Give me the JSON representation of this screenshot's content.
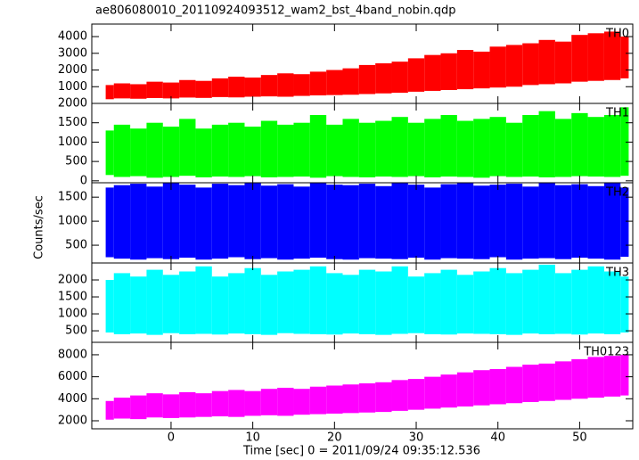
{
  "chart_data": [
    {
      "type": "band",
      "title": "ae806080010_20110924093512_wam2_bst_4band_nobin.qdp",
      "x": [
        -8,
        -6,
        -4,
        -2,
        0,
        2,
        4,
        6,
        8,
        10,
        12,
        14,
        16,
        18,
        20,
        22,
        24,
        26,
        28,
        30,
        32,
        34,
        36,
        38,
        40,
        42,
        44,
        46,
        48,
        50,
        52,
        54,
        56
      ],
      "series": [
        {
          "name": "TH0",
          "color": "#ff0000",
          "low": [
            250,
            300,
            280,
            320,
            300,
            350,
            330,
            380,
            360,
            400,
            420,
            400,
            450,
            480,
            500,
            520,
            560,
            600,
            640,
            700,
            750,
            800,
            850,
            900,
            950,
            1000,
            1100,
            1150,
            1200,
            1300,
            1350,
            1400,
            1500
          ],
          "high": [
            1100,
            1200,
            1150,
            1300,
            1250,
            1400,
            1350,
            1500,
            1600,
            1550,
            1700,
            1800,
            1750,
            1900,
            2000,
            2100,
            2300,
            2400,
            2500,
            2700,
            2900,
            3000,
            3200,
            3100,
            3400,
            3500,
            3600,
            3800,
            3700,
            4100,
            4200,
            4300,
            4000
          ]
        }
      ],
      "xlim": [
        -9.7,
        56.5
      ],
      "xticks": [
        0,
        10,
        20,
        30,
        40,
        50
      ],
      "ylim": [
        0,
        4750
      ],
      "yticks": [
        1000,
        2000,
        3000,
        4000
      ]
    },
    {
      "type": "band",
      "x": [
        -8,
        -6,
        -4,
        -2,
        0,
        2,
        4,
        6,
        8,
        10,
        12,
        14,
        16,
        18,
        20,
        22,
        24,
        26,
        28,
        30,
        32,
        34,
        36,
        38,
        40,
        42,
        44,
        46,
        48,
        50,
        52,
        54,
        56
      ],
      "series": [
        {
          "name": "TH1",
          "color": "#00ff00",
          "low": [
            150,
            100,
            120,
            80,
            100,
            130,
            90,
            110,
            100,
            120,
            90,
            100,
            110,
            80,
            120,
            100,
            90,
            110,
            100,
            120,
            90,
            110,
            100,
            80,
            120,
            100,
            110,
            90,
            100,
            120,
            110,
            100,
            130
          ],
          "high": [
            1300,
            1450,
            1350,
            1500,
            1400,
            1600,
            1350,
            1450,
            1500,
            1400,
            1550,
            1450,
            1500,
            1700,
            1450,
            1600,
            1500,
            1550,
            1650,
            1500,
            1600,
            1700,
            1550,
            1600,
            1650,
            1500,
            1700,
            1800,
            1600,
            1750,
            1650,
            1700,
            1900
          ]
        }
      ],
      "xlim": [
        -9.7,
        56.5
      ],
      "xticks": [
        0,
        10,
        20,
        30,
        40,
        50
      ],
      "ylim": [
        -50,
        2000
      ],
      "yticks": [
        0,
        500,
        1000,
        1500,
        2000
      ]
    },
    {
      "type": "band",
      "ylabel": "Counts/sec",
      "x": [
        -8,
        -6,
        -4,
        -2,
        0,
        2,
        4,
        6,
        8,
        10,
        12,
        14,
        16,
        18,
        20,
        22,
        24,
        26,
        28,
        30,
        32,
        34,
        36,
        38,
        40,
        42,
        44,
        46,
        48,
        50,
        52,
        54,
        56
      ],
      "series": [
        {
          "name": "TH2",
          "color": "#0000ff",
          "low": [
            250,
            220,
            200,
            230,
            210,
            240,
            200,
            220,
            250,
            210,
            230,
            200,
            220,
            240,
            210,
            200,
            230,
            220,
            210,
            240,
            200,
            230,
            220,
            210,
            250,
            200,
            220,
            230,
            210,
            240,
            220,
            200,
            260
          ],
          "high": [
            1700,
            1750,
            1780,
            1720,
            1790,
            1760,
            1700,
            1780,
            1750,
            1790,
            1740,
            1770,
            1720,
            1790,
            1760,
            1750,
            1780,
            1730,
            1790,
            1760,
            1700,
            1770,
            1790,
            1740,
            1760,
            1780,
            1720,
            1790,
            1750,
            1770,
            1730,
            1790,
            1700
          ]
        }
      ],
      "xlim": [
        -9.7,
        56.5
      ],
      "xticks": [
        0,
        10,
        20,
        30,
        40,
        50
      ],
      "ylim": [
        130,
        1800
      ],
      "yticks": [
        500,
        1000,
        1500
      ]
    },
    {
      "type": "band",
      "x": [
        -8,
        -6,
        -4,
        -2,
        0,
        2,
        4,
        6,
        8,
        10,
        12,
        14,
        16,
        18,
        20,
        22,
        24,
        26,
        28,
        30,
        32,
        34,
        36,
        38,
        40,
        42,
        44,
        46,
        48,
        50,
        52,
        54,
        56
      ],
      "series": [
        {
          "name": "TH3",
          "color": "#00ffff",
          "low": [
            450,
            400,
            420,
            380,
            430,
            400,
            410,
            390,
            420,
            400,
            380,
            430,
            410,
            400,
            390,
            420,
            400,
            380,
            410,
            430,
            400,
            390,
            420,
            410,
            400,
            380,
            420,
            400,
            410,
            390,
            420,
            400,
            450
          ],
          "high": [
            2000,
            2200,
            2100,
            2300,
            2150,
            2250,
            2400,
            2100,
            2200,
            2350,
            2150,
            2250,
            2300,
            2400,
            2200,
            2150,
            2300,
            2250,
            2400,
            2100,
            2200,
            2300,
            2150,
            2250,
            2350,
            2200,
            2300,
            2450,
            2200,
            2300,
            2400,
            2250,
            2100
          ]
        }
      ],
      "xlim": [
        -9.7,
        56.5
      ],
      "xticks": [
        0,
        10,
        20,
        30,
        40,
        50
      ],
      "ylim": [
        160,
        2500
      ],
      "yticks": [
        500,
        1000,
        1500,
        2000
      ]
    },
    {
      "type": "band",
      "xlabel": "Time [sec] 0 = 2011/09/24 09:35:12.536",
      "x": [
        -8,
        -6,
        -4,
        -2,
        0,
        2,
        4,
        6,
        8,
        10,
        12,
        14,
        16,
        18,
        20,
        22,
        24,
        26,
        28,
        30,
        32,
        34,
        36,
        38,
        40,
        42,
        44,
        46,
        48,
        50,
        52,
        54,
        56
      ],
      "series": [
        {
          "name": "TH0123",
          "color": "#ff00ff",
          "low": [
            2100,
            2200,
            2150,
            2300,
            2250,
            2300,
            2350,
            2400,
            2350,
            2450,
            2500,
            2450,
            2550,
            2600,
            2650,
            2700,
            2750,
            2800,
            2900,
            3000,
            3100,
            3200,
            3300,
            3400,
            3500,
            3600,
            3700,
            3800,
            3900,
            4000,
            4100,
            4200,
            4300
          ],
          "high": [
            3800,
            4100,
            4300,
            4500,
            4400,
            4600,
            4500,
            4700,
            4800,
            4700,
            4900,
            5000,
            4900,
            5100,
            5200,
            5300,
            5400,
            5500,
            5700,
            5800,
            6000,
            6200,
            6400,
            6600,
            6700,
            6900,
            7100,
            7200,
            7400,
            7600,
            7800,
            7900,
            8000
          ]
        }
      ],
      "xlim": [
        -9.7,
        56.5
      ],
      "xticks": [
        0,
        10,
        20,
        30,
        40,
        50
      ],
      "ylim": [
        1270,
        9130
      ],
      "yticks": [
        2000,
        4000,
        6000,
        8000
      ]
    }
  ]
}
